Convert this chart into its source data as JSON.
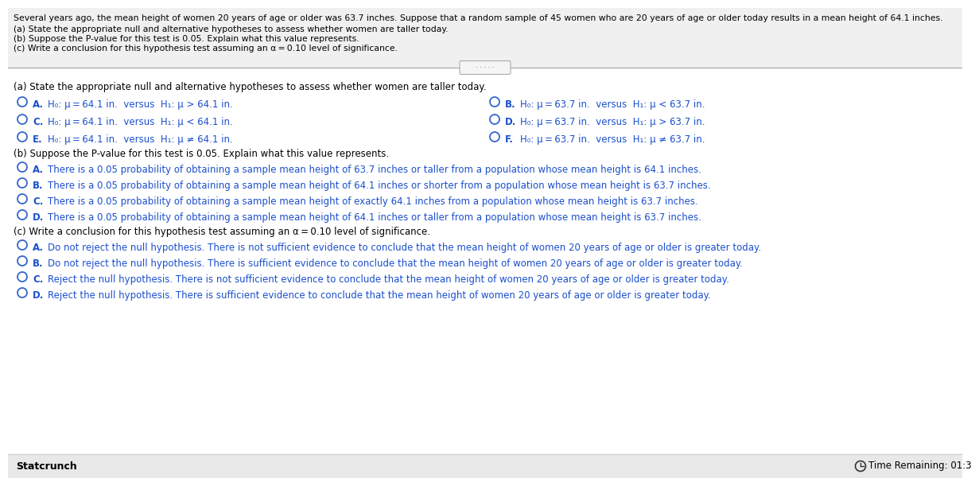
{
  "bg_color": "#ffffff",
  "header_bg": "#f0f0f0",
  "footer_bg": "#e8e8e8",
  "header_text": "Several years ago, the mean height of women 20 years of age or older was 63.7 inches. Suppose that a random sample of 45 women who are 20 years of age or older today results in a mean height of 64.1 inches.",
  "header_sub": [
    "(a) State the appropriate null and alternative hypotheses to assess whether women are taller today.",
    "(b) Suppose the P-value for this test is 0.05. Explain what this value represents.",
    "(c) Write a conclusion for this hypothesis test assuming an α = 0.10 level of significance."
  ],
  "section_a_label": "(a) State the appropriate null and alternative hypotheses to assess whether women are taller today.",
  "section_a_left": [
    [
      "A.",
      "H₀: μ = 64.1 in.  versus  H₁: μ > 64.1 in."
    ],
    [
      "C.",
      "H₀: μ = 64.1 in.  versus  H₁: μ < 64.1 in."
    ],
    [
      "E.",
      "H₀: μ = 64.1 in.  versus  H₁: μ ≠ 64.1 in."
    ]
  ],
  "section_a_right": [
    [
      "B.",
      "H₀: μ = 63.7 in.  versus  H₁: μ < 63.7 in."
    ],
    [
      "D.",
      "H₀: μ = 63.7 in.  versus  H₁: μ > 63.7 in."
    ],
    [
      "F.",
      "H₀: μ = 63.7 in.  versus  H₁: μ ≠ 63.7 in."
    ]
  ],
  "section_b_label": "(b) Suppose the P-value for this test is 0.05. Explain what this value represents.",
  "section_b_options": [
    [
      "A.",
      "There is a 0.05 probability of obtaining a sample mean height of 63.7 inches or taller from a population whose mean height is 64.1 inches."
    ],
    [
      "B.",
      "There is a 0.05 probability of obtaining a sample mean height of 64.1 inches or shorter from a population whose mean height is 63.7 inches."
    ],
    [
      "C.",
      "There is a 0.05 probability of obtaining a sample mean height of exactly 64.1 inches from a population whose mean height is 63.7 inches."
    ],
    [
      "D.",
      "There is a 0.05 probability of obtaining a sample mean height of 64.1 inches or taller from a population whose mean height is 63.7 inches."
    ]
  ],
  "section_c_label": "(c) Write a conclusion for this hypothesis test assuming an α = 0.10 level of significance.",
  "section_c_options": [
    [
      "A.",
      "Do not reject the null hypothesis. There is not sufficient evidence to conclude that the mean height of women 20 years of age or older is greater today."
    ],
    [
      "B.",
      "Do not reject the null hypothesis. There is sufficient evidence to conclude that the mean height of women 20 years of age or older is greater today."
    ],
    [
      "C.",
      "Reject the null hypothesis. There is not sufficient evidence to conclude that the mean height of women 20 years of age or older is greater today."
    ],
    [
      "D.",
      "Reject the null hypothesis. There is sufficient evidence to conclude that the mean height of women 20 years of age or older is greater today."
    ]
  ],
  "footer_left": "Statcrunch",
  "footer_right": "Time Remaining: 01:3",
  "text_color": "#000000",
  "label_color": "#1a4fcc",
  "option_text_color": "#000000",
  "divider_color": "#aaaaaa",
  "radio_color": "#3366cc",
  "bold_label_color": "#1a4fcc"
}
